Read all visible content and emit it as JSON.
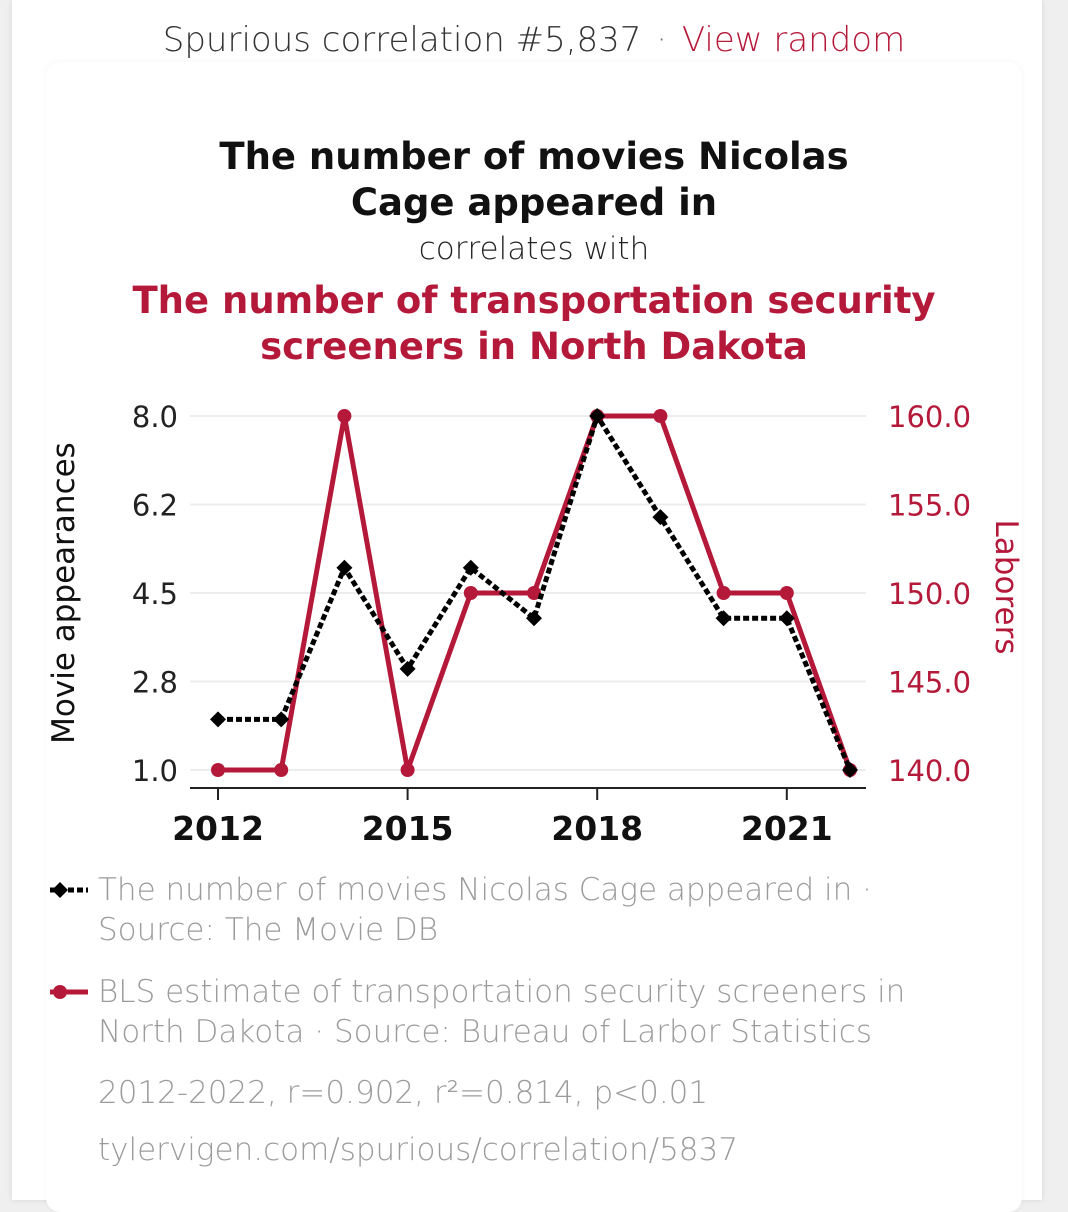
{
  "header": {
    "label": "Spurious correlation #5,837",
    "separator": "·",
    "link": "View random"
  },
  "titles": {
    "series1_title": "The number of movies Nicolas Cage appeared in",
    "connector": "correlates with",
    "series2_title": "The number of transportation security screeners in North Dakota"
  },
  "colors": {
    "accent": "#b5193a",
    "series1": "#000000",
    "series2": "#b5193a"
  },
  "chart_data": {
    "type": "line",
    "x": [
      2012,
      2013,
      2014,
      2015,
      2016,
      2017,
      2018,
      2019,
      2020,
      2021,
      2022
    ],
    "x_ticks": [
      "2012",
      "2015",
      "2018",
      "2021"
    ],
    "y_left_label": "Movie appearances",
    "y_left_ticks": [
      "8.0",
      "6.2",
      "4.5",
      "2.8",
      "1.0"
    ],
    "y_left_range": [
      1,
      8
    ],
    "y_right_label": "Laborers",
    "y_right_ticks": [
      "160.0",
      "155.0",
      "150.0",
      "145.0",
      "140.0"
    ],
    "y_right_range": [
      140,
      160
    ],
    "series": [
      {
        "values": [
          2,
          2,
          5,
          3,
          5,
          4,
          8,
          6,
          4,
          4,
          1
        ],
        "axis": "left",
        "style": "dashed",
        "marker": "diamond"
      },
      {
        "values": [
          140,
          140,
          160,
          140,
          150,
          150,
          160,
          160,
          150,
          150,
          140
        ],
        "axis": "right",
        "style": "solid",
        "marker": "circle"
      }
    ]
  },
  "legend": {
    "item1": "The number of movies Nicolas Cage appeared in · Source: The Movie DB",
    "item2": "BLS estimate of transportation security screeners in North Dakota · Source: Bureau of Larbor Statistics"
  },
  "stats": "2012-2022, r=0.902, r²=0.814, p<0.01",
  "url": "tylervigen.com/spurious/correlation/5837"
}
